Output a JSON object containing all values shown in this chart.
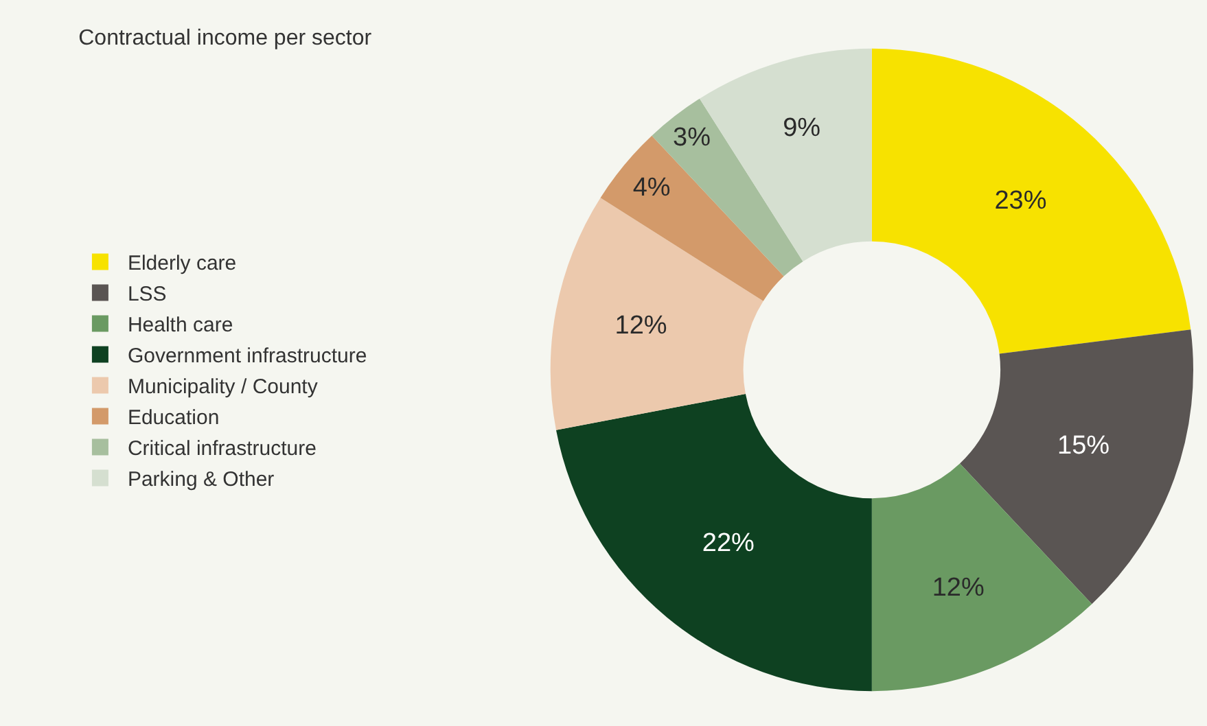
{
  "chart_data": {
    "type": "donut",
    "title": "Contractual income per sector",
    "categories": [
      "Elderly care",
      "LSS",
      "Health care",
      "Government infrastructure",
      "Municipality / County",
      "Education",
      "Critical infrastructure",
      "Parking & Other"
    ],
    "values": [
      23,
      15,
      12,
      22,
      12,
      4,
      3,
      9
    ],
    "colors": [
      "#f7e200",
      "#5a5553",
      "#6a9a62",
      "#0e4121",
      "#ecc9ad",
      "#d39a6a",
      "#a7bf9e",
      "#d5dfd0"
    ],
    "value_labels": [
      "23%",
      "15%",
      "12%",
      "22%",
      "12%",
      "4%",
      "3%",
      "9%"
    ],
    "legend": "left"
  }
}
